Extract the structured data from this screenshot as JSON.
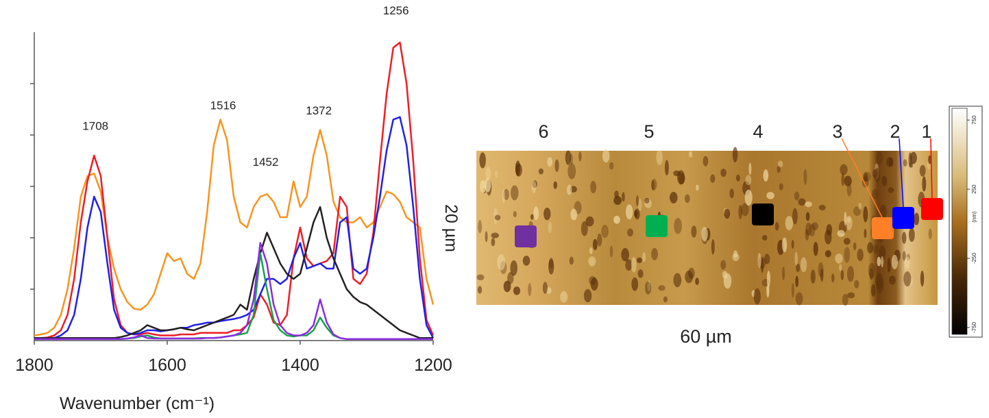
{
  "chart_data": [
    {
      "type": "line",
      "xlabel": "Wavenumber (cm⁻¹)",
      "xlim": [
        1800,
        1200
      ],
      "xticks": [
        1800,
        1600,
        1400,
        1200
      ],
      "ylim": [
        0,
        6
      ],
      "yticks": [
        1,
        2,
        3,
        4,
        5
      ],
      "ytick_labels": false,
      "x": [
        1800,
        1790,
        1780,
        1770,
        1760,
        1750,
        1740,
        1730,
        1720,
        1710,
        1700,
        1690,
        1680,
        1670,
        1660,
        1650,
        1640,
        1630,
        1620,
        1610,
        1600,
        1590,
        1580,
        1570,
        1560,
        1550,
        1540,
        1530,
        1520,
        1510,
        1500,
        1490,
        1480,
        1470,
        1460,
        1450,
        1440,
        1430,
        1420,
        1410,
        1400,
        1390,
        1380,
        1370,
        1360,
        1350,
        1340,
        1330,
        1320,
        1310,
        1300,
        1290,
        1280,
        1270,
        1260,
        1250,
        1240,
        1230,
        1220,
        1210,
        1200
      ],
      "series": [
        {
          "color": "#f7941d",
          "values": [
            0.1,
            0.12,
            0.15,
            0.25,
            0.5,
            1.0,
            1.8,
            2.8,
            3.2,
            3.25,
            2.9,
            2.0,
            1.4,
            1.0,
            0.75,
            0.62,
            0.6,
            0.7,
            0.9,
            1.3,
            1.7,
            1.55,
            1.6,
            1.3,
            1.2,
            1.5,
            2.5,
            3.8,
            4.3,
            3.9,
            2.8,
            2.3,
            2.2,
            2.6,
            2.8,
            2.85,
            2.7,
            2.4,
            2.4,
            3.1,
            2.6,
            2.8,
            3.6,
            4.1,
            3.6,
            2.7,
            2.4,
            2.3,
            2.3,
            2.4,
            2.2,
            2.3,
            2.6,
            2.9,
            2.85,
            2.7,
            2.4,
            2.3,
            2.2,
            1.2,
            0.7
          ]
        },
        {
          "color": "#ee1c25",
          "values": [
            0.05,
            0.05,
            0.06,
            0.1,
            0.2,
            0.5,
            1.2,
            2.3,
            3.1,
            3.6,
            3.2,
            2.0,
            0.8,
            0.3,
            0.15,
            0.12,
            0.12,
            0.15,
            0.12,
            0.1,
            0.1,
            0.1,
            0.12,
            0.12,
            0.12,
            0.15,
            0.15,
            0.15,
            0.15,
            0.15,
            0.2,
            0.2,
            0.3,
            0.45,
            0.9,
            0.7,
            0.35,
            0.3,
            0.5,
            1.6,
            2.2,
            1.6,
            1.45,
            1.5,
            1.55,
            1.7,
            2.8,
            2.6,
            1.2,
            1.1,
            1.3,
            2.1,
            3.5,
            4.8,
            5.7,
            5.8,
            5.0,
            3.5,
            1.6,
            0.4,
            0.1
          ]
        },
        {
          "color": "#1f1fe8",
          "values": [
            0.05,
            0.05,
            0.05,
            0.05,
            0.1,
            0.2,
            0.5,
            1.2,
            2.2,
            2.8,
            2.5,
            1.5,
            0.6,
            0.25,
            0.15,
            0.12,
            0.15,
            0.2,
            0.2,
            0.18,
            0.2,
            0.22,
            0.25,
            0.25,
            0.3,
            0.32,
            0.35,
            0.35,
            0.38,
            0.4,
            0.42,
            0.45,
            0.5,
            0.6,
            0.9,
            1.2,
            1.2,
            1.1,
            1.2,
            1.6,
            1.9,
            1.4,
            1.45,
            1.5,
            1.4,
            1.4,
            2.3,
            2.4,
            1.4,
            1.3,
            1.4,
            2.0,
            2.8,
            3.7,
            4.3,
            4.35,
            3.8,
            2.6,
            1.2,
            0.3,
            0.05
          ]
        },
        {
          "color": "#231f20",
          "values": [
            0.05,
            0.05,
            0.05,
            0.05,
            0.05,
            0.05,
            0.05,
            0.05,
            0.05,
            0.05,
            0.05,
            0.05,
            0.05,
            0.07,
            0.1,
            0.15,
            0.2,
            0.3,
            0.25,
            0.2,
            0.2,
            0.22,
            0.25,
            0.22,
            0.2,
            0.25,
            0.3,
            0.35,
            0.4,
            0.45,
            0.5,
            0.7,
            0.6,
            1.2,
            1.7,
            2.1,
            1.8,
            1.5,
            1.3,
            1.2,
            1.3,
            1.8,
            2.3,
            2.6,
            2.0,
            1.6,
            1.3,
            1.0,
            0.85,
            0.75,
            0.7,
            0.6,
            0.5,
            0.4,
            0.3,
            0.2,
            0.15,
            0.1,
            0.05,
            0.05,
            0.05
          ]
        },
        {
          "color": "#16a34a",
          "values": [
            0.03,
            0.03,
            0.03,
            0.03,
            0.03,
            0.03,
            0.03,
            0.03,
            0.03,
            0.03,
            0.03,
            0.03,
            0.03,
            0.03,
            0.04,
            0.05,
            0.08,
            0.1,
            0.06,
            0.04,
            0.04,
            0.04,
            0.04,
            0.04,
            0.04,
            0.05,
            0.05,
            0.05,
            0.06,
            0.08,
            0.1,
            0.12,
            0.15,
            0.5,
            1.7,
            1.0,
            0.4,
            0.2,
            0.1,
            0.08,
            0.1,
            0.1,
            0.2,
            0.45,
            0.25,
            0.1,
            0.05,
            0.03,
            0.03,
            0.03,
            0.03,
            0.03,
            0.03,
            0.03,
            0.03,
            0.03,
            0.03,
            0.03,
            0.03,
            0.03,
            0.03
          ]
        },
        {
          "color": "#8a2be2",
          "values": [
            0.03,
            0.03,
            0.03,
            0.03,
            0.03,
            0.03,
            0.03,
            0.03,
            0.03,
            0.03,
            0.03,
            0.03,
            0.03,
            0.03,
            0.04,
            0.06,
            0.1,
            0.05,
            0.04,
            0.04,
            0.04,
            0.04,
            0.04,
            0.04,
            0.04,
            0.04,
            0.05,
            0.05,
            0.06,
            0.08,
            0.1,
            0.15,
            0.3,
            0.8,
            1.9,
            1.5,
            0.7,
            0.3,
            0.15,
            0.1,
            0.1,
            0.15,
            0.3,
            0.8,
            0.35,
            0.12,
            0.05,
            0.03,
            0.03,
            0.03,
            0.03,
            0.03,
            0.03,
            0.03,
            0.03,
            0.03,
            0.03,
            0.03,
            0.03,
            0.03,
            0.03
          ]
        }
      ],
      "annotations": [
        {
          "x": 1708,
          "y": 4.1
        },
        {
          "x": 1516,
          "y": 4.5
        },
        {
          "x": 1452,
          "y": 3.4
        },
        {
          "x": 1372,
          "y": 4.4
        },
        {
          "x": 1256,
          "y": 6.35
        }
      ]
    },
    {
      "type": "image",
      "xlabel": "60 µm",
      "ylabel": "20 µm",
      "markers": [
        {
          "label": "6",
          "color": "#7030a0"
        },
        {
          "label": "5",
          "color": "#00b050"
        },
        {
          "label": "4",
          "color": "#000000"
        },
        {
          "label": "3",
          "color": "#ff7f27"
        },
        {
          "label": "2",
          "color": "#0000ff"
        },
        {
          "label": "1",
          "color": "#ff0000"
        }
      ],
      "colorbar": {
        "label": "(nm)",
        "lim": [
          -800,
          835
        ],
        "ticks": [
          -750,
          -250,
          250,
          750
        ]
      }
    }
  ]
}
